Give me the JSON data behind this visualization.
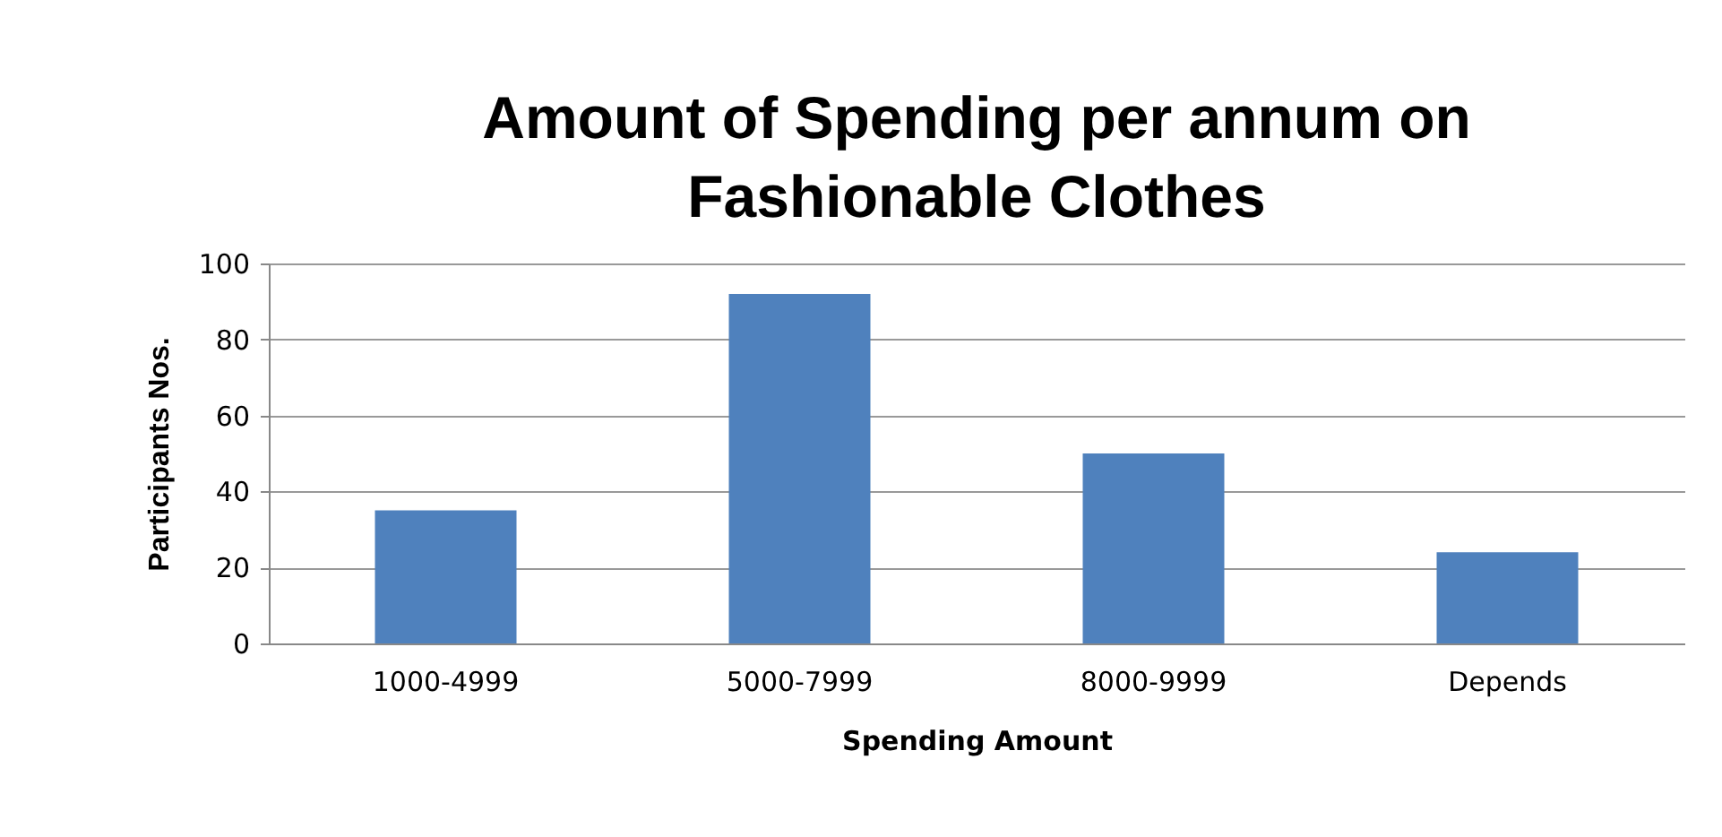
{
  "chart_data": {
    "type": "bar",
    "title": [
      "Amount of Spending per annum on",
      "Fashionable Clothes"
    ],
    "xlabel": "Spending Amount",
    "ylabel": "Participants Nos.",
    "categories": [
      "1000-4999",
      "5000-7999",
      "8000-9999",
      "Depends"
    ],
    "values": [
      35,
      92,
      50,
      24
    ],
    "color": "#4f81bd",
    "ylim": [
      0,
      100
    ],
    "yticks": [
      0,
      20,
      40,
      60,
      80,
      100
    ],
    "grid": "y",
    "legend": false
  }
}
